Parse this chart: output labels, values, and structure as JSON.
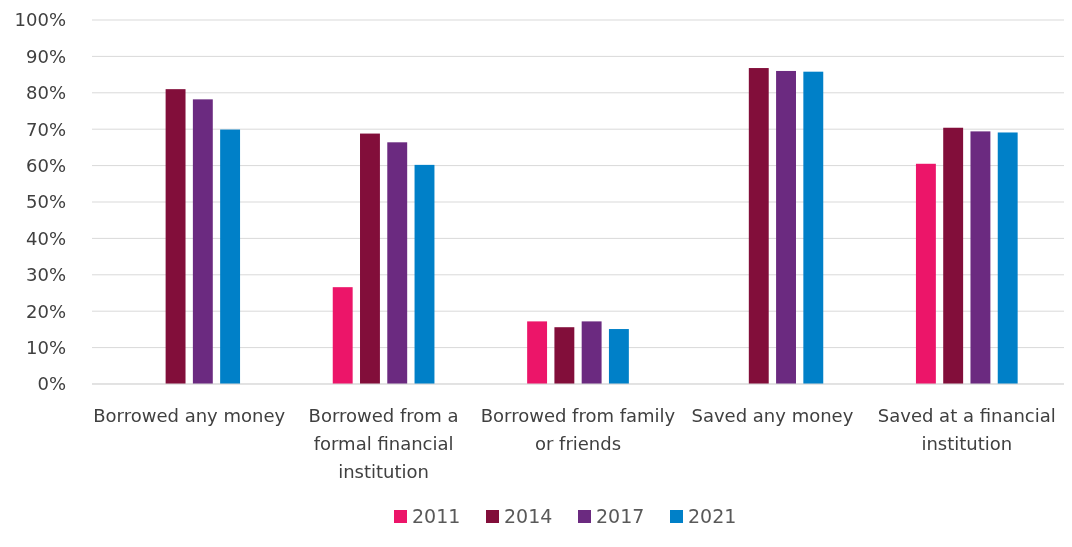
{
  "chart_data": {
    "type": "bar",
    "categories": [
      "Borrowed any money",
      "Borrowed from a formal financial institution",
      "Borrowed from family or friends",
      "Saved any money",
      "Saved at a financial institution"
    ],
    "series": [
      {
        "name": "2011",
        "color": "#ec1569",
        "values": [
          null,
          26.6,
          17.2,
          null,
          60.5
        ]
      },
      {
        "name": "2014",
        "color": "#820e3a",
        "values": [
          81,
          68.8,
          15.6,
          86.8,
          70.4
        ]
      },
      {
        "name": "2017",
        "color": "#6b2a80",
        "values": [
          78.2,
          66.4,
          17.2,
          86,
          69.4
        ]
      },
      {
        "name": "2021",
        "color": "#0080c8",
        "values": [
          69.9,
          60.2,
          15.1,
          85.8,
          69.1
        ]
      }
    ],
    "ylim": [
      0,
      100
    ],
    "yticks": [
      {
        "value": 0,
        "label": "0%"
      },
      {
        "value": 10,
        "label": "10%"
      },
      {
        "value": 20,
        "label": "20%"
      },
      {
        "value": 30,
        "label": "30%"
      },
      {
        "value": 40,
        "label": "40%"
      },
      {
        "value": 50,
        "label": "50%"
      },
      {
        "value": 60,
        "label": "60%"
      },
      {
        "value": 70,
        "label": "70%"
      },
      {
        "value": 80,
        "label": "80%"
      },
      {
        "value": 90,
        "label": "90%"
      },
      {
        "value": 100,
        "label": "100%"
      }
    ],
    "grid": "y",
    "legend": "bottom"
  }
}
